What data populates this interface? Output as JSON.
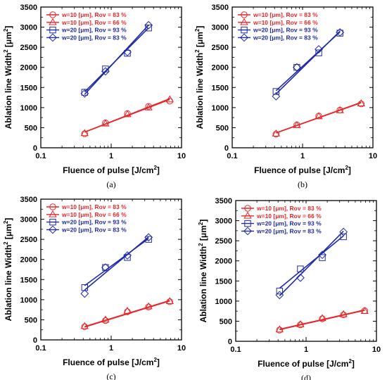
{
  "colors": {
    "red": "#e8262a",
    "blue": "#1f2aa6",
    "axis": "#000000"
  },
  "chart_data": [
    {
      "type": "scatter",
      "caption": "(a)",
      "xlabel_main": "Fluence of pulse [J/cm",
      "xlabel_sup": "2",
      "xlabel_end": "]",
      "ylabel_main": "Ablation line Width",
      "ylabel_sup1": "2",
      "ylabel_mid": " [μm",
      "ylabel_sup2": "2",
      "ylabel_end": "]",
      "x_scale": "log",
      "xlim": [
        0.1,
        10
      ],
      "ylim": [
        0,
        3500
      ],
      "x_ticks": [
        "0.1",
        "1",
        "10"
      ],
      "y_ticks": [
        "0",
        "500",
        "1000",
        "1500",
        "2000",
        "2500",
        "3000",
        "3500"
      ],
      "legend_position": "top-left",
      "series": [
        {
          "name": "w=10 [μm],  Rov = 83 %",
          "color": "red",
          "marker": "circle",
          "x": [
            0.42,
            0.83,
            1.7,
            3.4,
            6.8
          ],
          "y": [
            350,
            620,
            850,
            1030,
            1160
          ],
          "fit_y": [
            390,
            1200
          ]
        },
        {
          "name": "w=10 [μm],  Rov = 66 %",
          "color": "red",
          "marker": "triangle",
          "x": [
            0.42,
            0.83,
            1.7,
            3.4,
            6.8
          ],
          "y": [
            360,
            600,
            830,
            1000,
            1200
          ],
          "fit_y": [
            390,
            1220
          ]
        },
        {
          "name": "w=20 [μm],  Rov = 93 %",
          "color": "blue",
          "marker": "square",
          "x": [
            0.42,
            0.83,
            1.7,
            3.4
          ],
          "y": [
            1380,
            1960,
            2350,
            2980
          ],
          "fit_y": [
            1390,
            2980
          ]
        },
        {
          "name": "w=20 [μm],  Rov = 83 %",
          "color": "blue",
          "marker": "diamond",
          "x": [
            0.42,
            0.83,
            1.7,
            3.4
          ],
          "y": [
            1350,
            1900,
            2380,
            3050
          ],
          "fit_y": [
            1330,
            3050
          ]
        }
      ]
    },
    {
      "type": "scatter",
      "caption": "(b)",
      "xlabel_main": "Fluence of pulse [J/cm",
      "xlabel_sup": "2",
      "xlabel_end": "]",
      "ylabel_main": "Ablation line Width",
      "ylabel_sup1": "2",
      "ylabel_mid": " [μm",
      "ylabel_sup2": "2",
      "ylabel_end": "]",
      "x_scale": "log",
      "xlim": [
        0.1,
        10
      ],
      "ylim": [
        0,
        3500
      ],
      "x_ticks": [
        "0.1",
        "1",
        "10"
      ],
      "y_ticks": [
        "0",
        "500",
        "1000",
        "1500",
        "2000",
        "2500",
        "3000",
        "3500"
      ],
      "legend_position": "top-left",
      "series": [
        {
          "name": "w=10 [μm],  Rov = 83 %",
          "color": "red",
          "marker": "circle",
          "x": [
            0.42,
            0.83,
            1.7,
            3.4,
            6.8
          ],
          "y": [
            340,
            570,
            790,
            940,
            1090
          ],
          "fit_y": [
            370,
            1120
          ]
        },
        {
          "name": "w=10 [μm],  Rov = 66 %",
          "color": "red",
          "marker": "triangle",
          "x": [
            0.42,
            0.83,
            1.7,
            3.4,
            6.8
          ],
          "y": [
            350,
            560,
            780,
            930,
            1100
          ],
          "fit_y": [
            370,
            1130
          ]
        },
        {
          "name": "w=20 [μm],  Rov = 93 %",
          "color": "blue",
          "marker": "square",
          "x": [
            0.42,
            0.83,
            1.7,
            3.4
          ],
          "y": [
            1400,
            2000,
            2360,
            2850
          ],
          "fit_y": [
            1420,
            2880
          ]
        },
        {
          "name": "w=20 [μm],  Rov = 83 %",
          "color": "blue",
          "marker": "diamond",
          "x": [
            0.42,
            0.83,
            1.7,
            3.4
          ],
          "y": [
            1280,
            2000,
            2450,
            2870
          ],
          "fit_y": [
            1340,
            2900
          ]
        }
      ]
    },
    {
      "type": "scatter",
      "caption": "(c)",
      "xlabel_main": "Fluence of pulse [J/cm",
      "xlabel_sup": "2",
      "xlabel_end": "]",
      "ylabel_main": "Ablation line Width",
      "ylabel_sup1": "2",
      "ylabel_mid": " [μm",
      "ylabel_sup2": "2",
      "ylabel_end": "]",
      "x_scale": "log",
      "xlim": [
        0.1,
        10
      ],
      "ylim": [
        0,
        3500
      ],
      "x_ticks": [
        "0.1",
        "1",
        "10"
      ],
      "y_ticks": [
        "0",
        "500",
        "1000",
        "1500",
        "2000",
        "2500",
        "3000",
        "3500"
      ],
      "legend_position": "top-left",
      "series": [
        {
          "name": "w=10 [μm],  Rov = 83 %",
          "color": "red",
          "marker": "circle",
          "x": [
            0.42,
            0.83,
            1.7,
            3.4,
            6.8
          ],
          "y": [
            330,
            480,
            700,
            820,
            950
          ],
          "fit_y": [
            320,
            970
          ]
        },
        {
          "name": "w=10 [μm],  Rov = 66 %",
          "color": "red",
          "marker": "triangle",
          "x": [
            0.42,
            0.83,
            1.7,
            3.4,
            6.8
          ],
          "y": [
            340,
            500,
            720,
            830,
            960
          ],
          "fit_y": [
            330,
            980
          ]
        },
        {
          "name": "w=20 [μm],  Rov = 93 %",
          "color": "blue",
          "marker": "square",
          "x": [
            0.42,
            0.83,
            1.7,
            3.4
          ],
          "y": [
            1300,
            1800,
            2050,
            2500
          ],
          "fit_y": [
            1350,
            2520
          ]
        },
        {
          "name": "w=20 [μm],  Rov = 83 %",
          "color": "blue",
          "marker": "diamond",
          "x": [
            0.42,
            0.83,
            1.7,
            3.4
          ],
          "y": [
            1150,
            1800,
            2100,
            2550
          ],
          "fit_y": [
            1240,
            2560
          ]
        }
      ]
    },
    {
      "type": "scatter",
      "caption": "(d)",
      "xlabel_main": "Fluence of pulse [J/cm",
      "xlabel_sup": "2",
      "xlabel_end": "]",
      "ylabel_main": "Ablation line Width",
      "ylabel_sup1": "2",
      "ylabel_mid": " [μm",
      "ylabel_sup2": "2",
      "ylabel_end": "]",
      "x_scale": "log",
      "xlim": [
        0.1,
        10
      ],
      "ylim": [
        0,
        3500
      ],
      "x_ticks": [
        "0.1",
        "1",
        "10"
      ],
      "y_ticks": [
        "0",
        "500",
        "1000",
        "1500",
        "2000",
        "2500",
        "3000",
        "3500"
      ],
      "legend_position": "top-left",
      "series": [
        {
          "name": "w=10 [μm],  Rov = 83 %",
          "color": "red",
          "marker": "circle",
          "x": [
            0.42,
            0.83,
            1.7,
            3.4,
            6.8
          ],
          "y": [
            280,
            410,
            560,
            660,
            760
          ],
          "fit_y": [
            290,
            770
          ]
        },
        {
          "name": "w=10 [μm],  Rov = 66 %",
          "color": "red",
          "marker": "triangle",
          "x": [
            0.42,
            0.83,
            1.7,
            3.4,
            6.8
          ],
          "y": [
            290,
            420,
            570,
            670,
            750
          ],
          "fit_y": [
            300,
            780
          ]
        },
        {
          "name": "w=20 [μm],  Rov = 93 %",
          "color": "blue",
          "marker": "square",
          "x": [
            0.42,
            0.83,
            1.7,
            3.4
          ],
          "y": [
            1250,
            1800,
            2080,
            2600
          ],
          "fit_y": [
            1320,
            2620
          ]
        },
        {
          "name": "w=20 [μm],  Rov = 83 %",
          "color": "blue",
          "marker": "diamond",
          "x": [
            0.42,
            0.83,
            1.7,
            3.4
          ],
          "y": [
            1150,
            1580,
            2150,
            2720
          ],
          "fit_y": [
            1130,
            2740
          ]
        }
      ]
    }
  ]
}
